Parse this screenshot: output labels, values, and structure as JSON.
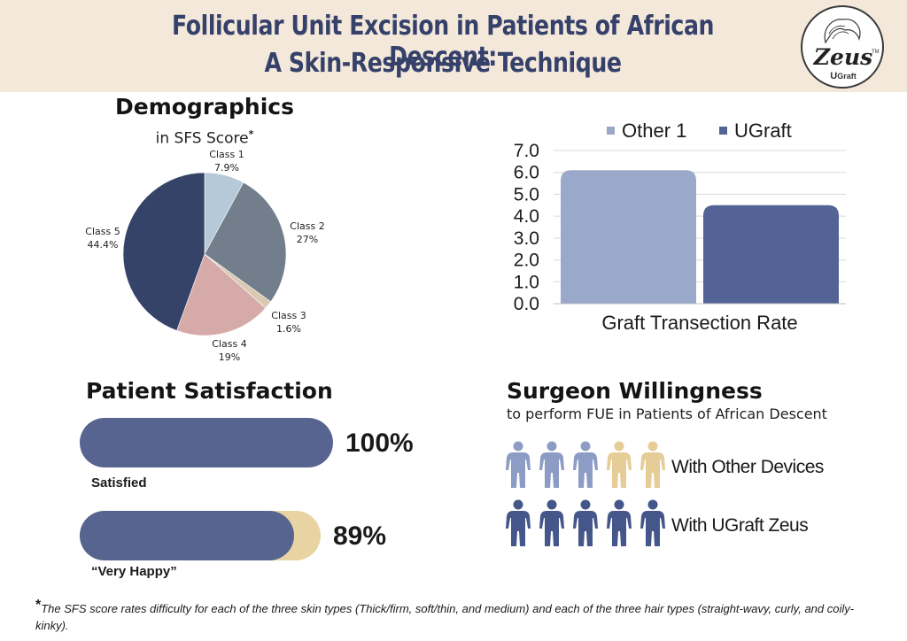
{
  "header": {
    "title_line1": "Follicular Unit Excision in Patients of African Descent:",
    "title_line2": "A Skin-Responsive Technique",
    "logo_text": "Zeus",
    "logo_sub_u": "U",
    "logo_sub": "Graft",
    "logo_tm": "TM"
  },
  "demographics": {
    "title": "Demographics",
    "subtitle": "in SFS Score",
    "asterisk": "*"
  },
  "satisfaction": {
    "title": "Patient Satisfaction",
    "items": [
      {
        "label": "Satisfied",
        "value_text": "100%"
      },
      {
        "label": "“Very Happy”",
        "value_text": "89%"
      }
    ]
  },
  "willingness": {
    "title": "Surgeon Willingness",
    "subtitle": "to perform FUE in Patients of African Descent",
    "rows": [
      {
        "label": "With Other Devices"
      },
      {
        "label": "With UGraft Zeus"
      }
    ]
  },
  "footnote": {
    "marker": "*",
    "text": "The SFS score rates difficulty for each of the three skin types (Thick/firm, soft/thin, and medium) and each of the three hair types (straight-wavy, curly, and coily-kinky)."
  },
  "colors": {
    "header_bg": "#f3e8da",
    "title": "#35416a",
    "bar_fill": "#56648f",
    "bar_track": "#e8d3a3",
    "person_light_blue": "#8d9cc4",
    "person_tan": "#e6cc96",
    "person_dark": "#45578a"
  },
  "chart_data": [
    {
      "type": "pie",
      "title": "Demographics",
      "subtitle": "in SFS Score",
      "slices": [
        {
          "label": "Class 1",
          "value": 7.9,
          "value_text": "7.9%",
          "color": "#b5c9d8"
        },
        {
          "label": "Class 2",
          "value": 27,
          "value_text": "27%",
          "color": "#737e8c"
        },
        {
          "label": "Class 3",
          "value": 1.6,
          "value_text": "1.6%",
          "color": "#d9c9b2"
        },
        {
          "label": "Class 4",
          "value": 19,
          "value_text": "19%",
          "color": "#d6aaa8"
        },
        {
          "label": "Class 5",
          "value": 44.4,
          "value_text": "44.4%",
          "color": "#354368"
        }
      ]
    },
    {
      "type": "bar",
      "categories": [
        "Graft Transection Rate"
      ],
      "series": [
        {
          "name": "Other 1",
          "values": [
            6.1
          ],
          "color": "#9aa8c9"
        },
        {
          "name": "UGraft",
          "values": [
            4.5
          ],
          "color": "#546395"
        }
      ],
      "ylim": [
        0,
        7
      ],
      "yticks": [
        "0.0",
        "1.0",
        "2.0",
        "3.0",
        "4.0",
        "5.0",
        "6.0",
        "7.0"
      ],
      "grid": true,
      "legend": "top"
    },
    {
      "type": "bar",
      "title": "Patient Satisfaction",
      "categories": [
        "Satisfied",
        "“Very Happy”"
      ],
      "values": [
        100,
        89
      ],
      "value_labels": [
        "100%",
        "89%"
      ]
    },
    {
      "type": "table",
      "title": "Surgeon Willingness",
      "rows": [
        {
          "label": "With Other Devices",
          "willing": 3,
          "total": 5
        },
        {
          "label": "With UGraft Zeus",
          "willing": 5,
          "total": 5
        }
      ]
    }
  ]
}
